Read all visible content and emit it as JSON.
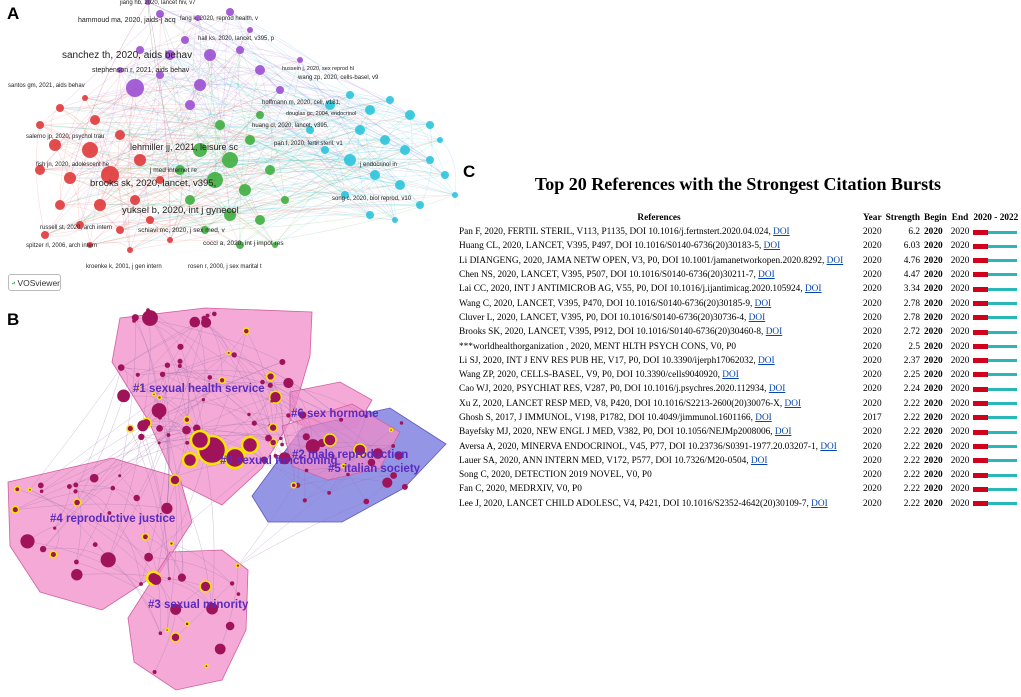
{
  "panels": {
    "a": "A",
    "b": "B",
    "c": "C"
  },
  "panel_a": {
    "logo_text": "VOSviewer",
    "labels": [
      {
        "text": "jiang hb, 2020, lancet hiv, v7",
        "color": "#7030a0"
      },
      {
        "text": "hammoud ma, 2020, jaids-j acq",
        "color": "#7030a0"
      },
      {
        "text": "fang k, 2020, reprod health, v",
        "color": "#7030a0"
      },
      {
        "text": "sanchez th, 2020, aids behav",
        "color": "#7030a0"
      },
      {
        "text": "stephenson r, 2021, aids behav",
        "color": "#7030a0"
      },
      {
        "text": "hall ks, 2020, lancet, v395, p",
        "color": "#7030a0"
      },
      {
        "text": "santos gm, 2021, aids behav",
        "color": "#c00000"
      },
      {
        "text": "hussein j, 2020, sex reprod hl",
        "color": "#7030a0"
      },
      {
        "text": "wang zp, 2020, cells-basel, v9",
        "color": "#00a0c0"
      },
      {
        "text": "lehmiller jj, 2021, leisure sc",
        "color": "#2e7d32"
      },
      {
        "text": "hoffmann m, 2020, cell, v181,",
        "color": "#00a0c0"
      },
      {
        "text": "brooks sk, 2020, lancet, v395,",
        "color": "#c00000"
      },
      {
        "text": "pan f, 2020, fertil steril, v1",
        "color": "#00a0c0"
      },
      {
        "text": "j endocrinol in",
        "color": "#00a0c0"
      },
      {
        "text": "j med internet re",
        "color": "#2e7d32"
      },
      {
        "text": "yuksel b, 2020, int j gynecol",
        "color": "#2e7d32"
      },
      {
        "text": "song c, 2020, biol reprod, v10",
        "color": "#00a0c0"
      },
      {
        "text": "salerno jp, 2020, psychol trau",
        "color": "#c00000"
      },
      {
        "text": "fish jn, 2020, adolescent he",
        "color": "#c00000"
      },
      {
        "text": "schiavi mc, 2020, j sex med, v",
        "color": "#2e7d32"
      },
      {
        "text": "cocci a, 2020, int j impot res",
        "color": "#2e7d32"
      },
      {
        "text": "russell st, 2020, arch intern",
        "color": "#c00000"
      },
      {
        "text": "spitzer rl, 2006, arch intern",
        "color": "#c00000"
      },
      {
        "text": "kroenke k, 2001, j gen intern",
        "color": "#c00000"
      },
      {
        "text": "rosen r, 2000, j sex marital t",
        "color": "#2e7d32"
      },
      {
        "text": "huang cl, 2020, lancet, v395,",
        "color": "#00a0c0"
      },
      {
        "text": "douglas gc, 2004, endocrinol",
        "color": "#00a0c0"
      }
    ]
  },
  "panel_b": {
    "clusters": [
      {
        "label": "#1 sexual health service"
      },
      {
        "label": "#6 sex hormone"
      },
      {
        "label": "#0 sexual functioning"
      },
      {
        "label": "#2 male reproduction"
      },
      {
        "label": "#5 italian society"
      },
      {
        "label": "#4 reproductive justice"
      },
      {
        "label": "#3 sexual minority"
      }
    ],
    "colors": {
      "cluster_fill": "#f08cc8",
      "blue_fill": "#7b7be0",
      "node": "#a0125a",
      "highlight": "#f5e600",
      "label": "#5b2bbf"
    }
  },
  "panel_c": {
    "title": "Top 20 References with the Strongest Citation Bursts",
    "headers": {
      "references": "References",
      "year": "Year",
      "strength": "Strength",
      "begin": "Begin",
      "end": "End",
      "range": "2020 - 2022"
    },
    "colors": {
      "burst": "#d0021b",
      "base": "#2ab7b7",
      "link": "#0645ad"
    },
    "rows": [
      {
        "ref": "Pan F, 2020, FERTIL STERIL, V113, P1135, DOI 10.1016/j.fertnstert.2020.04.024,",
        "doi": "DOI",
        "year": "2020",
        "strength": "6.2",
        "begin": "2020",
        "end": "2020",
        "burst_fraction": 0.33
      },
      {
        "ref": "Huang CL, 2020, LANCET, V395, P497, DOI 10.1016/S0140-6736(20)30183-5,",
        "doi": "DOI",
        "year": "2020",
        "strength": "6.03",
        "begin": "2020",
        "end": "2020",
        "burst_fraction": 0.33
      },
      {
        "ref": "Li DIANGENG, 2020, JAMA NETW OPEN, V3, P0, DOI 10.1001/jamanetworkopen.2020.8292,",
        "doi": "DOI",
        "year": "2020",
        "strength": "4.76",
        "begin": "2020",
        "end": "2020",
        "burst_fraction": 0.33
      },
      {
        "ref": "Chen NS, 2020, LANCET, V395, P507, DOI 10.1016/S0140-6736(20)30211-7,",
        "doi": "DOI",
        "year": "2020",
        "strength": "4.47",
        "begin": "2020",
        "end": "2020",
        "burst_fraction": 0.33
      },
      {
        "ref": "Lai CC, 2020, INT J ANTIMICROB AG, V55, P0, DOI 10.1016/j.ijantimicag.2020.105924,",
        "doi": "DOI",
        "year": "2020",
        "strength": "3.34",
        "begin": "2020",
        "end": "2020",
        "burst_fraction": 0.33
      },
      {
        "ref": "Wang C, 2020, LANCET, V395, P470, DOI 10.1016/S0140-6736(20)30185-9,",
        "doi": "DOI",
        "year": "2020",
        "strength": "2.78",
        "begin": "2020",
        "end": "2020",
        "burst_fraction": 0.33
      },
      {
        "ref": "Cluver L, 2020, LANCET, V395, P0, DOI 10.1016/S0140-6736(20)30736-4,",
        "doi": "DOI",
        "year": "2020",
        "strength": "2.78",
        "begin": "2020",
        "end": "2020",
        "burst_fraction": 0.33
      },
      {
        "ref": "Brooks SK, 2020, LANCET, V395, P912, DOI 10.1016/S0140-6736(20)30460-8,",
        "doi": "DOI",
        "year": "2020",
        "strength": "2.72",
        "begin": "2020",
        "end": "2020",
        "burst_fraction": 0.33
      },
      {
        "ref": "***worldhealthorganization , 2020, MENT HLTH PSYCH CONS, V0, P0",
        "doi": "",
        "year": "2020",
        "strength": "2.5",
        "begin": "2020",
        "end": "2020",
        "burst_fraction": 0.33
      },
      {
        "ref": "Li SJ, 2020, INT J ENV RES PUB HE, V17, P0, DOI 10.3390/ijerph17062032,",
        "doi": "DOI",
        "year": "2020",
        "strength": "2.37",
        "begin": "2020",
        "end": "2020",
        "burst_fraction": 0.33
      },
      {
        "ref": "Wang ZP, 2020, CELLS-BASEL, V9, P0, DOI 10.3390/cells9040920,",
        "doi": "DOI",
        "year": "2020",
        "strength": "2.25",
        "begin": "2020",
        "end": "2020",
        "burst_fraction": 0.33
      },
      {
        "ref": "Cao WJ, 2020, PSYCHIAT RES, V287, P0, DOI 10.1016/j.psychres.2020.112934,",
        "doi": "DOI",
        "year": "2020",
        "strength": "2.24",
        "begin": "2020",
        "end": "2020",
        "burst_fraction": 0.33
      },
      {
        "ref": "Xu Z, 2020, LANCET RESP MED, V8, P420, DOI 10.1016/S2213-2600(20)30076-X,",
        "doi": "DOI",
        "year": "2020",
        "strength": "2.22",
        "begin": "2020",
        "end": "2020",
        "burst_fraction": 0.33
      },
      {
        "ref": "Ghosh S, 2017, J IMMUNOL, V198, P1782, DOI 10.4049/jimmunol.1601166,",
        "doi": "DOI",
        "year": "2017",
        "strength": "2.22",
        "begin": "2020",
        "end": "2020",
        "burst_fraction": 0.33
      },
      {
        "ref": "Bayefsky MJ, 2020, NEW ENGL J MED, V382, P0, DOI 10.1056/NEJMp2008006,",
        "doi": "DOI",
        "year": "2020",
        "strength": "2.22",
        "begin": "2020",
        "end": "2020",
        "burst_fraction": 0.33
      },
      {
        "ref": "Aversa A, 2020, MINERVA ENDOCRINOL, V45, P77, DOI 10.23736/S0391-1977.20.03207-1,",
        "doi": "DOI",
        "year": "2020",
        "strength": "2.22",
        "begin": "2020",
        "end": "2020",
        "burst_fraction": 0.33
      },
      {
        "ref": "Lauer SA, 2020, ANN INTERN MED, V172, P577, DOI 10.7326/M20-0504,",
        "doi": "DOI",
        "year": "2020",
        "strength": "2.22",
        "begin": "2020",
        "end": "2020",
        "burst_fraction": 0.33
      },
      {
        "ref": "Song C, 2020, DETECTION 2019 NOVEL, V0, P0",
        "doi": "",
        "year": "2020",
        "strength": "2.22",
        "begin": "2020",
        "end": "2020",
        "burst_fraction": 0.33
      },
      {
        "ref": "Fan C, 2020, MEDRXIV, V0, P0",
        "doi": "",
        "year": "2020",
        "strength": "2.22",
        "begin": "2020",
        "end": "2020",
        "burst_fraction": 0.33
      },
      {
        "ref": "Lee J, 2020, LANCET CHILD ADOLESC, V4, P421, DOI 10.1016/S2352-4642(20)30109-7,",
        "doi": "DOI",
        "year": "2020",
        "strength": "2.22",
        "begin": "2020",
        "end": "2020",
        "burst_fraction": 0.33
      }
    ]
  }
}
